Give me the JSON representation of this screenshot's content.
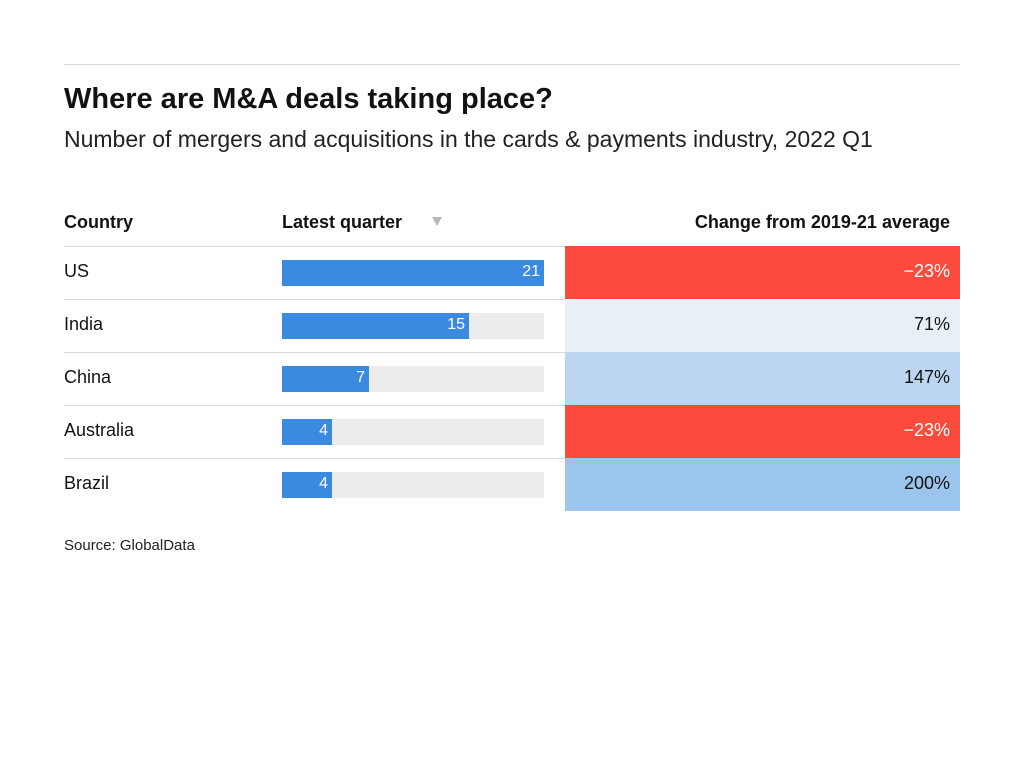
{
  "title": "Where are M&A deals taking place?",
  "subtitle": "Number of mergers and acquisitions in the cards & payments industry, 2022 Q1",
  "source": "Source: GlobalData",
  "columns": {
    "country": "Country",
    "latest": "Latest quarter",
    "change": "Change from 2019-21 average"
  },
  "colors": {
    "bar": "#3a8ae0",
    "bar_track": "#ececec",
    "negative": "#fc4a3d",
    "positive_low": "#e8eff5",
    "positive_mid": "#bcd6f2",
    "positive_high": "#9cc5ee"
  },
  "chart_data": {
    "type": "table",
    "title": "Where are M&A deals taking place?",
    "subtitle": "Number of mergers and acquisitions in the cards & payments industry, 2022 Q1",
    "bar_max": 21,
    "rows": [
      {
        "country": "US",
        "latest": 21,
        "latest_label": "21",
        "change": -23,
        "change_label": "−23%",
        "cell_color": "#fc4a3d"
      },
      {
        "country": "India",
        "latest": 15,
        "latest_label": "15",
        "change": 71,
        "change_label": "71%",
        "cell_color": "#e8eff5"
      },
      {
        "country": "China",
        "latest": 7,
        "latest_label": "7",
        "change": 147,
        "change_label": "147%",
        "cell_color": "#bcd6f2"
      },
      {
        "country": "Australia",
        "latest": 4,
        "latest_label": "4",
        "change": -23,
        "change_label": "−23%",
        "cell_color": "#fc4a3d"
      },
      {
        "country": "Brazil",
        "latest": 4,
        "latest_label": "4",
        "change": 200,
        "change_label": "200%",
        "cell_color": "#9cc5ee"
      }
    ]
  }
}
